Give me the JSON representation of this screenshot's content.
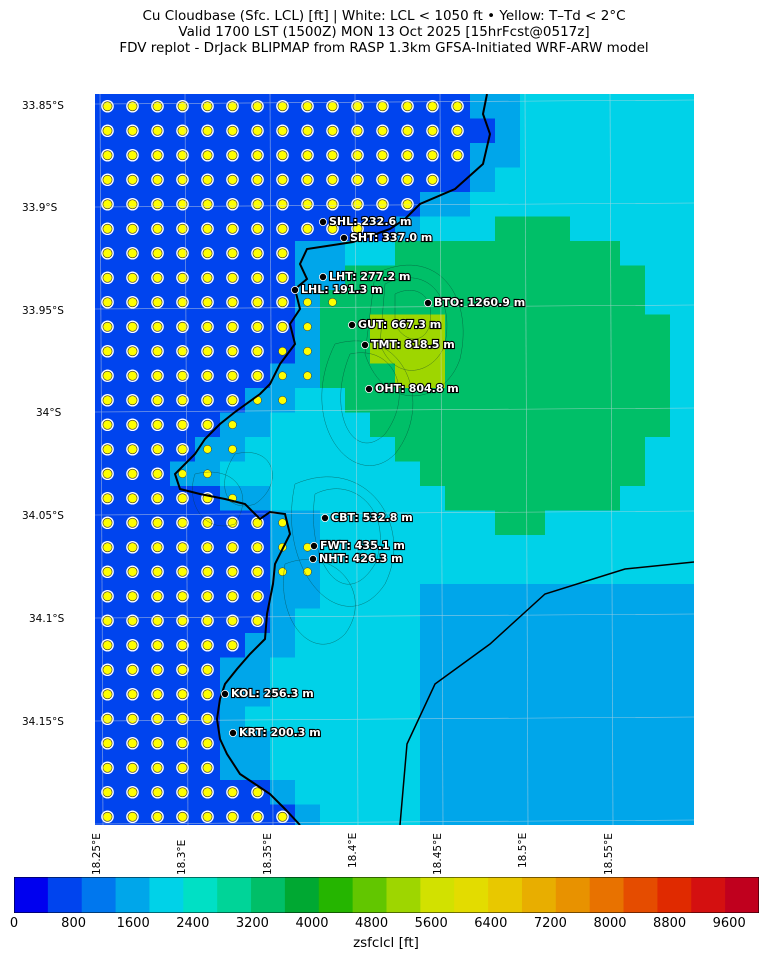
{
  "header": {
    "line1": "Cu Cloudbase (Sfc. LCL) [ft]  |  White: LCL < 1050 ft • Yellow: T–Td < 2°C",
    "line2": "Valid 1700 LST (1500Z) MON 13 Oct 2025 [15hrFcst@0517z]",
    "line3": "FDV replot - DrJack BLIPMAP from RASP 1.3km GFSA-Initiated WRF-ARW model"
  },
  "axes": {
    "lat_labels": [
      "33.85°S",
      "33.9°S",
      "33.95°S",
      "34°S",
      "34.05°S",
      "34.1°S",
      "34.15°S"
    ],
    "lon_labels": [
      "18.25°E",
      "18.3°E",
      "18.35°E",
      "18.4°E",
      "18.45°E",
      "18.5°E",
      "18.55°E"
    ]
  },
  "colorbar": {
    "label": "zsfclcl [ft]",
    "tick_labels": [
      "0",
      "800",
      "1600",
      "2400",
      "3200",
      "4000",
      "4800",
      "5600",
      "6400",
      "7200",
      "8000",
      "8800",
      "9600"
    ],
    "range": [
      0,
      10000
    ],
    "colors": [
      "#0000ef",
      "#0044ee",
      "#0077ee",
      "#00a6ea",
      "#00d2e8",
      "#00e0c5",
      "#00d498",
      "#00bf68",
      "#00a832",
      "#25b500",
      "#62c600",
      "#9ed600",
      "#d2e100",
      "#e3dc00",
      "#e8c800",
      "#e8ae00",
      "#e89200",
      "#e87200",
      "#e54c00",
      "#e02a00",
      "#d41010",
      "#c0001e"
    ]
  },
  "stations": [
    {
      "label": "SHL: 232.6 m"
    },
    {
      "label": "SHT: 337.0 m"
    },
    {
      "label": "LHT: 277.2 m"
    },
    {
      "label": "LHL: 191.3 m"
    },
    {
      "label": "BTO: 1260.9 m"
    },
    {
      "label": "GUT: 667.3 m"
    },
    {
      "label": "TMT: 818.5 m"
    },
    {
      "label": "OHT: 804.8 m"
    },
    {
      "label": "CBT: 532.8 m"
    },
    {
      "label": "FWT: 435.1 m"
    },
    {
      "label": "NHT: 426.3 m"
    },
    {
      "label": "KOL: 256.3 m"
    },
    {
      "label": "KRT: 200.3 m"
    }
  ],
  "map_colors": {
    "sea": "#0044ee",
    "land_low": "#00a6ea",
    "land_mid": "#00d2e8",
    "land_high": "#00bf68",
    "peak": "#9ed600",
    "marker_yellow": "#ffff00",
    "marker_white": "#ffffff"
  }
}
